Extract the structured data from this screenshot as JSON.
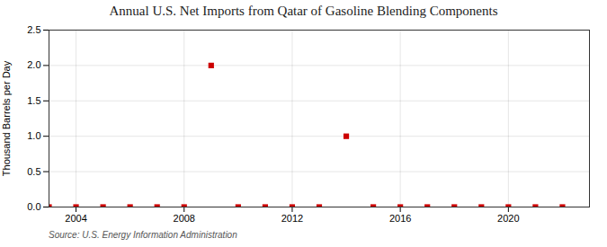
{
  "chart_data": {
    "type": "scatter",
    "title": "Annual U.S. Net Imports from Qatar of Gasoline Blending Components",
    "ylabel": "Thousand Barrels per Day",
    "source": "Source: U.S. Energy Information Administration",
    "x": [
      2003,
      2004,
      2005,
      2006,
      2007,
      2008,
      2009,
      2010,
      2011,
      2012,
      2013,
      2014,
      2015,
      2016,
      2017,
      2018,
      2019,
      2020,
      2021,
      2022
    ],
    "values": [
      0,
      0,
      0,
      0,
      0,
      0,
      2.0,
      0,
      0,
      0,
      0,
      1.0,
      0,
      0,
      0,
      0,
      0,
      0,
      0,
      0
    ],
    "color": "#cc0000",
    "marker": "square",
    "xlim": [
      2003,
      2023
    ],
    "ylim": [
      0,
      2.5
    ],
    "xticks": [
      2004,
      2008,
      2012,
      2016,
      2020
    ],
    "yticks": [
      {
        "value": 0.0,
        "label": "0.0"
      },
      0.5,
      {
        "value": 1.0,
        "label": "1.0"
      },
      1.5,
      {
        "value": 2.0,
        "label": "2.0"
      },
      2.5
    ],
    "grid": true
  }
}
